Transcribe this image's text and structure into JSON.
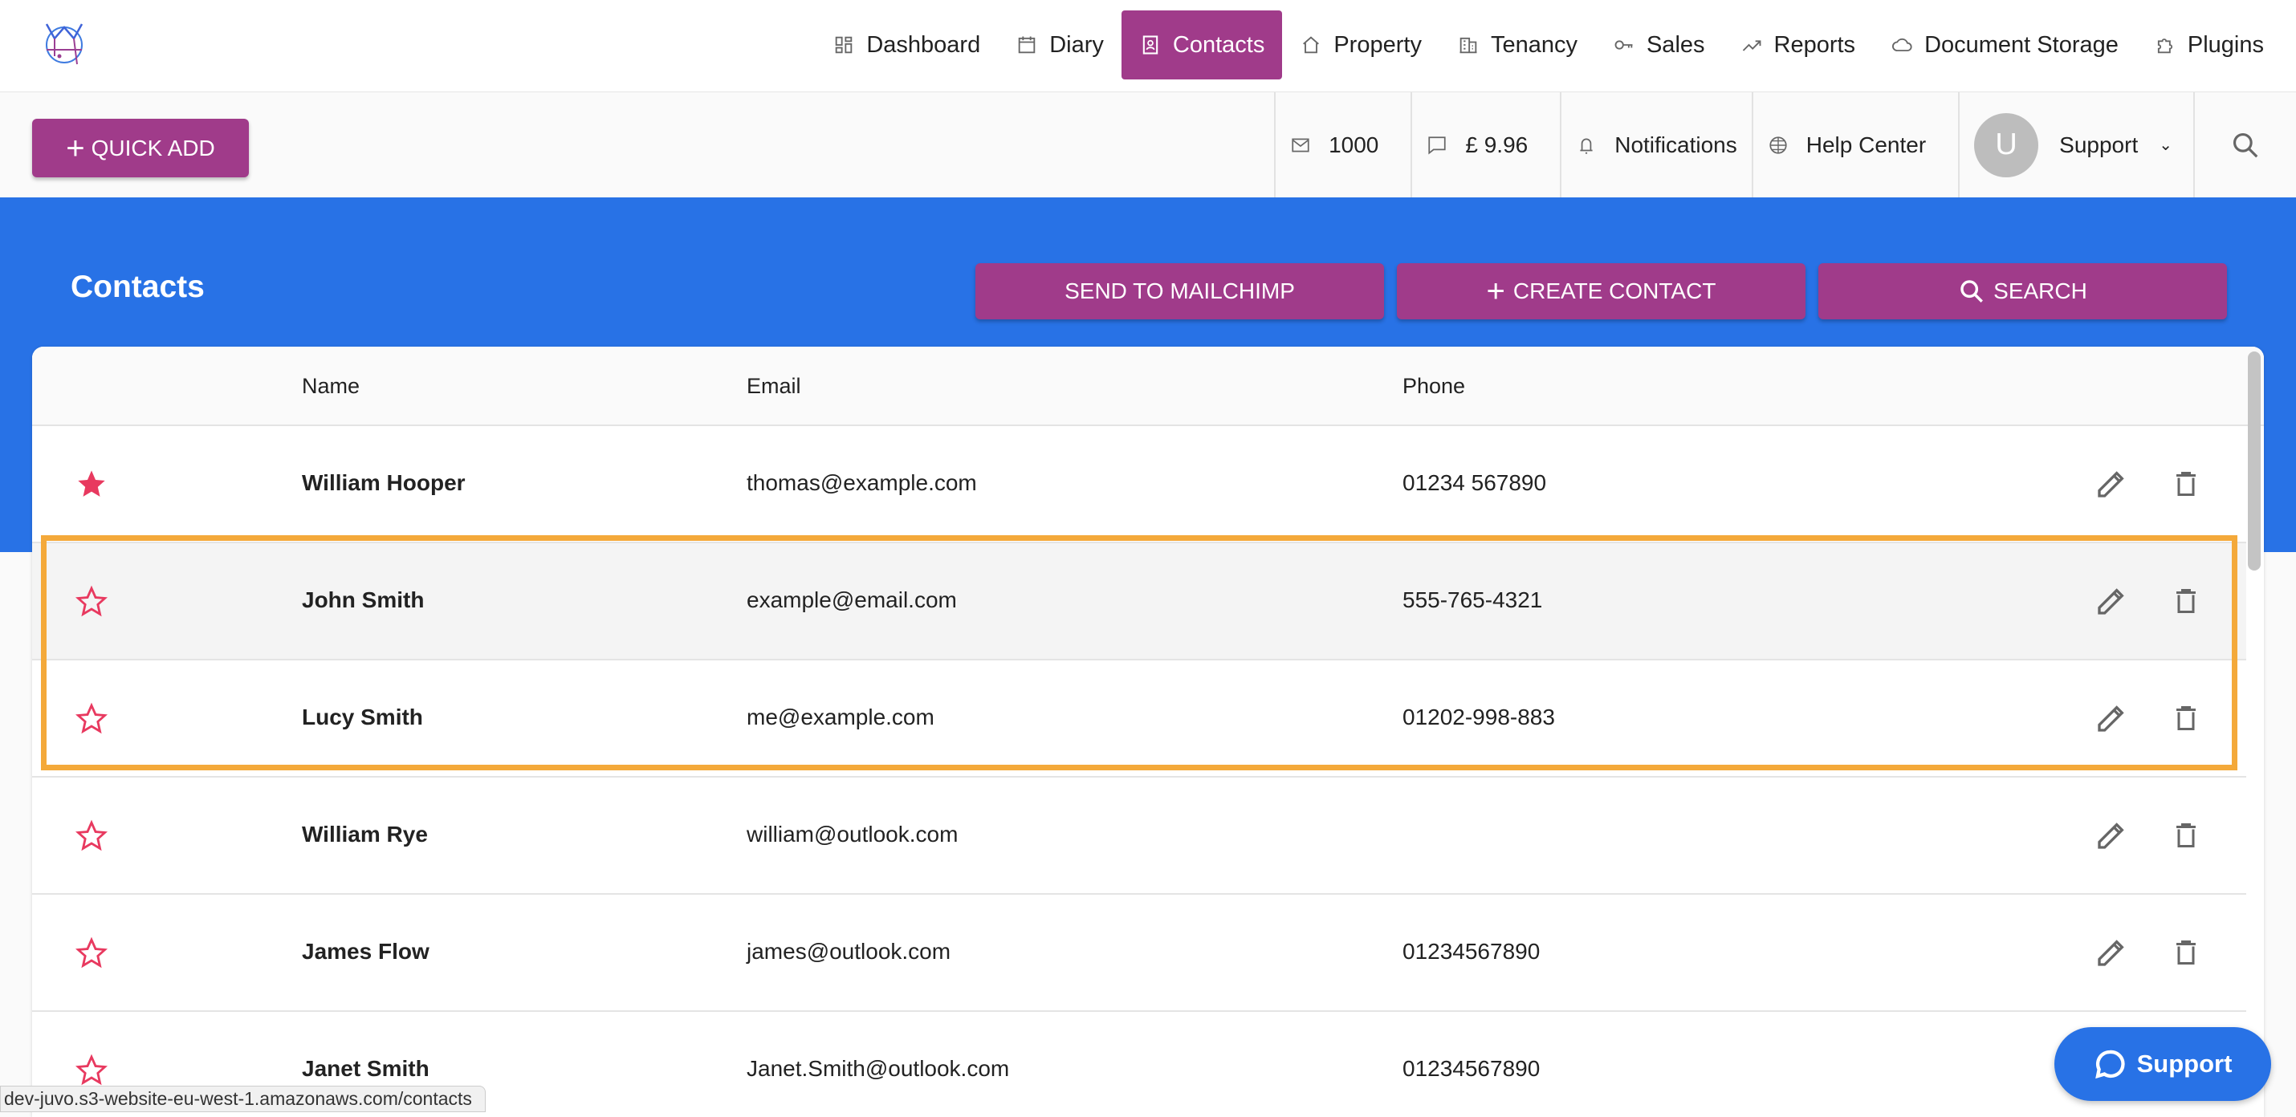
{
  "nav": {
    "items": [
      {
        "label": "Dashboard",
        "icon": "dashboard-icon"
      },
      {
        "label": "Diary",
        "icon": "calendar-icon"
      },
      {
        "label": "Contacts",
        "icon": "contacts-icon",
        "active": true
      },
      {
        "label": "Property",
        "icon": "home-icon"
      },
      {
        "label": "Tenancy",
        "icon": "building-icon"
      },
      {
        "label": "Sales",
        "icon": "key-icon"
      },
      {
        "label": "Reports",
        "icon": "trending-icon"
      },
      {
        "label": "Document Storage",
        "icon": "cloud-icon"
      },
      {
        "label": "Plugins",
        "icon": "puzzle-icon"
      }
    ]
  },
  "toolbar": {
    "quick_add": "QUICK ADD",
    "emails": "1000",
    "sms_credit": "£ 9.96",
    "notifications": "Notifications",
    "help": "Help Center",
    "avatar_letter": "U",
    "user": "Support"
  },
  "page": {
    "title": "Contacts",
    "send_mailchimp": "SEND TO MAILCHIMP",
    "create_contact": "CREATE CONTACT",
    "search": "SEARCH"
  },
  "table": {
    "headers": {
      "name": "Name",
      "email": "Email",
      "phone": "Phone"
    },
    "rows": [
      {
        "name": "William Hooper",
        "email": "thomas@example.com",
        "phone": "01234 567890",
        "favorite": true
      },
      {
        "name": "John Smith",
        "email": "example@email.com",
        "phone": "555-765-4321",
        "favorite": false
      },
      {
        "name": "Lucy Smith",
        "email": "me@example.com",
        "phone": "01202-998-883",
        "favorite": false
      },
      {
        "name": "William Rye",
        "email": "william@outlook.com",
        "phone": "",
        "favorite": false
      },
      {
        "name": "James Flow",
        "email": "james@outlook.com",
        "phone": "01234567890",
        "favorite": false
      },
      {
        "name": "Janet Smith",
        "email": "Janet.Smith@outlook.com",
        "phone": "01234567890",
        "favorite": false
      }
    ]
  },
  "chat": {
    "label": "Support"
  },
  "status_url": "dev-juvo.s3-website-eu-west-1.amazonaws.com/contacts",
  "colors": {
    "brand": "#a03b8a",
    "band": "#2872e6",
    "star": "#e8395f",
    "highlight": "#f4a93a"
  }
}
